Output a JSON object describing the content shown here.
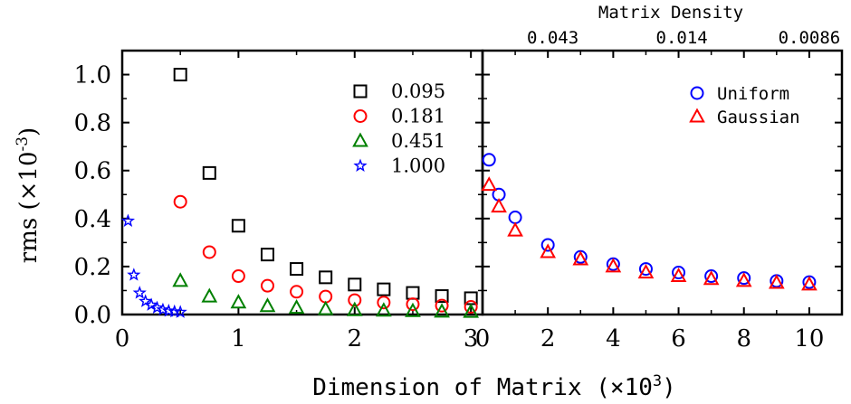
{
  "chart_data": [
    {
      "type": "scatter",
      "panel": "left",
      "xlabel": "Dimension of Matrix (×10^3)",
      "ylabel": "rms (×10^-3)",
      "xlim": [
        0,
        3.1
      ],
      "ylim": [
        0,
        1.1
      ],
      "x_ticks": [
        "0",
        "1",
        "2",
        "3"
      ],
      "y_ticks": [
        "0.0",
        "0.2",
        "0.4",
        "0.6",
        "0.8",
        "1.0"
      ],
      "legend_position": "top-right",
      "series": [
        {
          "name": "0.095",
          "marker": "square",
          "color": "#000000",
          "x": [
            0.5,
            0.75,
            1.0,
            1.25,
            1.5,
            1.75,
            2.0,
            2.25,
            2.5,
            2.75,
            3.0
          ],
          "y": [
            1.0,
            0.59,
            0.37,
            0.25,
            0.19,
            0.155,
            0.125,
            0.105,
            0.09,
            0.077,
            0.068
          ]
        },
        {
          "name": "0.181",
          "marker": "circle",
          "color": "#ff0000",
          "x": [
            0.5,
            0.75,
            1.0,
            1.25,
            1.5,
            1.75,
            2.0,
            2.25,
            2.5,
            2.75,
            3.0
          ],
          "y": [
            0.47,
            0.26,
            0.16,
            0.12,
            0.095,
            0.075,
            0.06,
            0.05,
            0.043,
            0.037,
            0.032
          ]
        },
        {
          "name": "0.451",
          "marker": "triangle",
          "color": "#008000",
          "x": [
            0.5,
            0.75,
            1.0,
            1.25,
            1.5,
            1.75,
            2.0,
            2.25,
            2.5,
            2.75,
            3.0
          ],
          "y": [
            0.14,
            0.075,
            0.05,
            0.035,
            0.028,
            0.022,
            0.018,
            0.016,
            0.014,
            0.012,
            0.011
          ]
        },
        {
          "name": "1.000",
          "marker": "star",
          "color": "#0000ff",
          "x": [
            0.05,
            0.1,
            0.15,
            0.2,
            0.25,
            0.3,
            0.35,
            0.4,
            0.45,
            0.5
          ],
          "y": [
            0.39,
            0.165,
            0.09,
            0.055,
            0.04,
            0.028,
            0.02,
            0.015,
            0.012,
            0.01
          ]
        }
      ]
    },
    {
      "type": "scatter",
      "panel": "right",
      "xlabel": "",
      "x2label": "Matrix Density",
      "xlim": [
        0,
        11
      ],
      "ylim": [
        0,
        1.1
      ],
      "x_ticks": [
        "0",
        "2",
        "4",
        "6",
        "8",
        "10"
      ],
      "x2_ticks": [
        {
          "label": "0.043",
          "x": 2.15
        },
        {
          "label": "0.014",
          "x": 6.1
        },
        {
          "label": "0.0086",
          "x": 10.0
        }
      ],
      "legend_position": "top-right",
      "series": [
        {
          "name": "Uniform",
          "marker": "circle",
          "color": "#0000ff",
          "x": [
            0.2,
            0.5,
            1,
            2,
            3,
            4,
            5,
            6,
            7,
            8,
            9,
            10
          ],
          "y": [
            0.645,
            0.5,
            0.405,
            0.29,
            0.24,
            0.21,
            0.19,
            0.175,
            0.16,
            0.152,
            0.14,
            0.135
          ]
        },
        {
          "name": "Gaussian",
          "marker": "triangle",
          "color": "#ff0000",
          "x": [
            0.2,
            0.5,
            1,
            2,
            3,
            4,
            5,
            6,
            7,
            8,
            9,
            10
          ],
          "y": [
            0.54,
            0.45,
            0.35,
            0.26,
            0.23,
            0.2,
            0.175,
            0.16,
            0.148,
            0.14,
            0.132,
            0.125
          ]
        }
      ]
    }
  ]
}
